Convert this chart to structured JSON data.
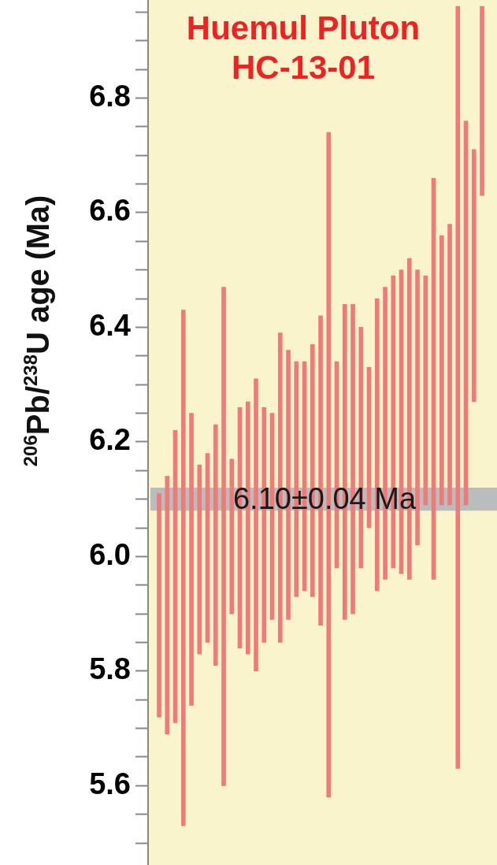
{
  "chart_data": {
    "type": "bar",
    "title": "Huemul Pluton\nHC-13-01",
    "ylabel": "$^{206}$Pb/$^{238}$U age (Ma)",
    "categories": [
      null,
      null,
      null,
      null,
      null,
      null,
      null,
      null,
      null,
      null,
      null,
      null,
      null,
      null,
      null,
      null,
      null,
      null,
      null,
      null,
      null,
      null,
      null,
      null,
      null,
      null,
      null,
      null,
      null,
      null,
      null,
      null,
      null,
      null,
      null,
      null,
      null,
      null,
      null,
      null,
      null
    ],
    "base": [
      5.72,
      5.69,
      5.71,
      5.53,
      5.74,
      5.83,
      5.85,
      5.81,
      5.6,
      5.9,
      5.84,
      5.83,
      5.8,
      5.85,
      5.89,
      5.85,
      5.89,
      5.93,
      5.94,
      5.93,
      5.88,
      5.58,
      5.98,
      5.89,
      5.9,
      5.98,
      6.05,
      5.94,
      5.96,
      5.98,
      5.97,
      5.96,
      6.02,
      6.09,
      5.96,
      6.09,
      6.09,
      5.63,
      6.09,
      6.27,
      6.63
    ],
    "values": [
      0.39,
      0.45,
      0.51,
      0.9,
      0.51,
      0.33,
      0.33,
      0.42,
      0.87,
      0.27,
      0.42,
      0.44,
      0.51,
      0.41,
      0.36,
      0.54,
      0.47,
      0.41,
      0.4,
      0.44,
      0.54,
      1.16,
      0.36,
      0.55,
      0.54,
      0.42,
      0.28,
      0.51,
      0.51,
      0.51,
      0.53,
      0.56,
      0.48,
      0.4,
      0.7,
      0.47,
      0.49,
      1.33,
      0.67,
      0.44,
      0.33
    ],
    "color": "#f07a78",
    "ylim": [
      5.46,
      6.97
    ],
    "yticks": [
      {
        "value": 5.5,
        "label": null
      },
      {
        "value": 5.55,
        "label": null
      },
      5.6,
      {
        "value": 5.65,
        "label": null
      },
      {
        "value": 5.7,
        "label": null
      },
      {
        "value": 5.75,
        "label": null
      },
      5.8,
      {
        "value": 5.85,
        "label": null
      },
      {
        "value": 5.9,
        "label": null
      },
      {
        "value": 5.95,
        "label": null
      },
      {
        "value": 6,
        "label": "6.0"
      },
      {
        "value": 6.05,
        "label": null
      },
      {
        "value": 6.1,
        "label": null
      },
      {
        "value": 6.15,
        "label": null
      },
      6.2,
      {
        "value": 6.25,
        "label": null
      },
      {
        "value": 6.3,
        "label": null
      },
      {
        "value": 6.35,
        "label": null
      },
      6.4,
      {
        "value": 6.45,
        "label": null
      },
      {
        "value": 6.5,
        "label": null
      },
      {
        "value": 6.55,
        "label": null
      },
      6.6,
      {
        "value": 6.65,
        "label": null
      },
      {
        "value": 6.7,
        "label": null
      },
      {
        "value": 6.75,
        "label": null
      },
      6.8,
      {
        "value": 6.85,
        "label": null
      },
      {
        "value": 6.9,
        "label": null
      },
      {
        "value": 6.95,
        "label": null
      }
    ],
    "bands": [
      {
        "axis": "y",
        "from": 6.08,
        "to": 6.12,
        "label": "6.10±0.04 Ma",
        "color": "#b9bdbe"
      }
    ]
  }
}
